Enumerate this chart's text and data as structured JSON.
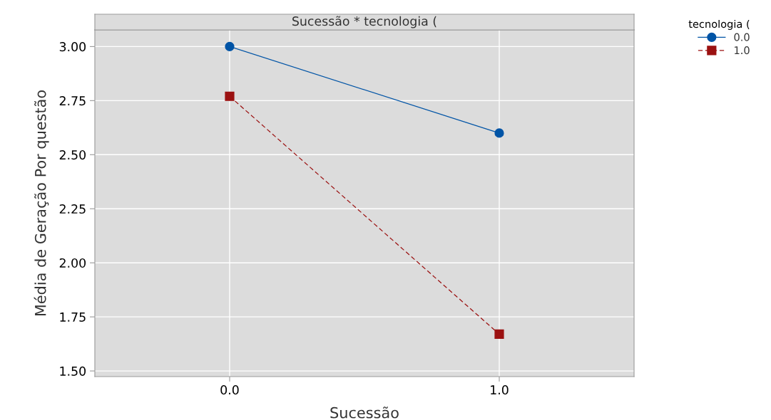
{
  "chart_data": {
    "type": "line",
    "title": "Sucessão * tecnologia (",
    "xlabel": "Sucessão",
    "ylabel": "Média de Geração Por questão",
    "legend_title": "tecnologia (",
    "categories": [
      "0.0",
      "1.0"
    ],
    "series": [
      {
        "name": "0.0",
        "color": "#0054a6",
        "values": [
          3.0,
          2.6
        ],
        "marker": "circle",
        "line_style": "solid"
      },
      {
        "name": "1.0",
        "color": "#9b1111",
        "values": [
          2.77,
          1.67
        ],
        "marker": "square",
        "line_style": "dashed"
      }
    ],
    "ylim": [
      1.474,
      3.077
    ],
    "yticks": [
      {
        "value": 1.5,
        "label": "1.50"
      },
      {
        "value": 1.75,
        "label": "1.75"
      },
      {
        "value": 2.0,
        "label": "2.00"
      },
      {
        "value": 2.25,
        "label": "2.25"
      },
      {
        "value": 2.5,
        "label": "2.50"
      },
      {
        "value": 2.75,
        "label": "2.75"
      },
      {
        "value": 3.0,
        "label": "3.00"
      }
    ],
    "grid": true,
    "legend": "top right"
  }
}
